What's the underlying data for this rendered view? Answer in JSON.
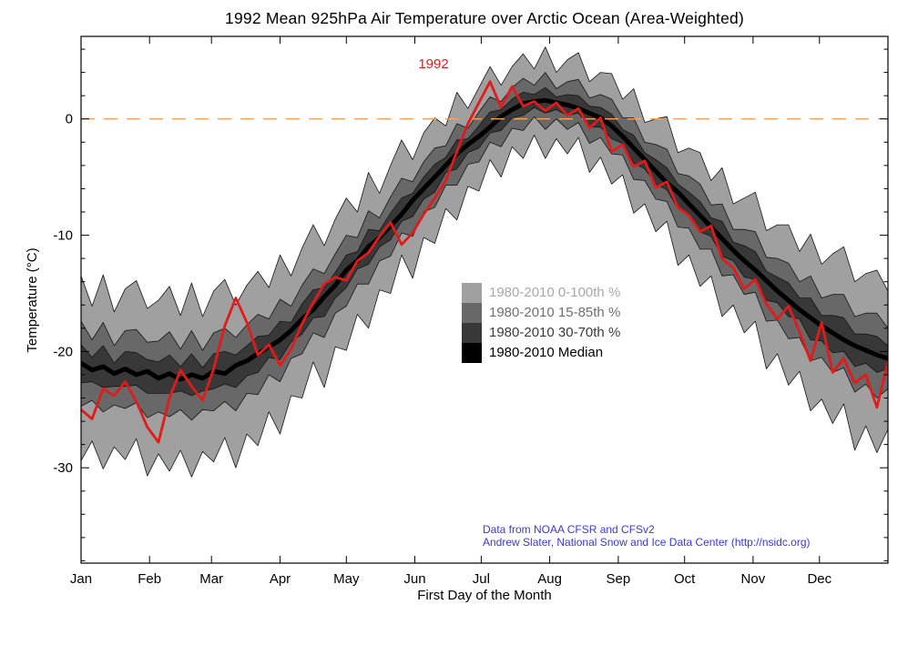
{
  "title": "1992 Mean 925hPa Air Temperature over Arctic Ocean (Area-Weighted)",
  "annotation_1992": "1992",
  "xlabel": "First Day of the Month",
  "ylabel": "Temperature (°C)",
  "credits": [
    "Data from NOAA CFSR and CFSv2",
    "Andrew Slater, National Snow and Ice Data Center (http://nsidc.org)"
  ],
  "colors": {
    "red_1992": "#e31a1a",
    "zero_line": "#f2a45c",
    "credits_blue": "#3a3ace",
    "band_outline": "#141414",
    "axis": "#000000"
  },
  "legend": {
    "items": [
      {
        "label": "1980-2010 0-100th %",
        "swatch": "#a0a0a0",
        "text_color": "#a8a8a8"
      },
      {
        "label": "1980-2010 15-85th %",
        "swatch": "#686868",
        "text_color": "#6f6f6f"
      },
      {
        "label": "1980-2010 30-70th %",
        "swatch": "#383838",
        "text_color": "#3a3a3a"
      },
      {
        "label": "1980-2010 Median",
        "swatch": "#000000",
        "text_color": "#000000"
      }
    ]
  },
  "chart_data": {
    "type": "line",
    "title": "1992 Mean 925hPa Air Temperature over Arctic Ocean (Area-Weighted)",
    "xlabel": "First Day of the Month",
    "ylabel": "Temperature (°C)",
    "x_unit": "day_of_year",
    "day_step": 5,
    "xlim_days": [
      0,
      365
    ],
    "ylim": [
      -38.2,
      7.1
    ],
    "yticks_labeled": [
      0,
      -10,
      -20,
      -30
    ],
    "ytick_minor_step": 2,
    "x_tick_months": [
      "Jan",
      "Feb",
      "Mar",
      "Apr",
      "May",
      "Jun",
      "Jul",
      "Aug",
      "Sep",
      "Oct",
      "Nov",
      "Dec"
    ],
    "month_start_days": [
      0,
      31,
      59,
      90,
      120,
      151,
      181,
      212,
      243,
      273,
      304,
      334
    ],
    "zero_reference_line": {
      "value": 0,
      "color": "#f2a45c",
      "style": "dashed"
    },
    "bands": [
      {
        "name": "1980-2010 0-100th %",
        "color": "#a0a0a0",
        "upper": "p100",
        "lower": "p0"
      },
      {
        "name": "1980-2010 15-85th %",
        "color": "#686868",
        "upper": "p85",
        "lower": "p15"
      },
      {
        "name": "1980-2010 30-70th %",
        "color": "#383838",
        "upper": "p70",
        "lower": "p30"
      }
    ],
    "line_styles": {
      "median": {
        "color": "#000000",
        "width": 5,
        "label": "1980-2010 Median"
      },
      "t1992": {
        "color": "#e31a1a",
        "width": 2.8,
        "label": "1992"
      }
    },
    "series": {
      "p100": [
        -13.5,
        -16.1,
        -13.4,
        -16.6,
        -14.6,
        -13.9,
        -16.3,
        -15.6,
        -14.4,
        -16.9,
        -14.1,
        -17.0,
        -14.8,
        -13.8,
        -16.0,
        -14.3,
        -13.1,
        -14.5,
        -11.7,
        -13.5,
        -11.1,
        -9.1,
        -10.9,
        -8.6,
        -6.8,
        -8.0,
        -4.6,
        -6.4,
        -4.0,
        -1.8,
        -3.5,
        -1.2,
        0.1,
        -0.6,
        2.3,
        0.9,
        2.7,
        4.5,
        2.9,
        4.5,
        5.6,
        4.3,
        6.2,
        4.0,
        5.1,
        5.7,
        3.2,
        4.0,
        3.9,
        1.7,
        2.6,
        -0.3,
        0.0,
        0.2,
        -2.9,
        -2.5,
        -2.9,
        -5.3,
        -4.2,
        -7.3,
        -6.8,
        -6.3,
        -9.6,
        -9.1,
        -9.1,
        -11.4,
        -9.9,
        -12.5,
        -11.6,
        -11.0,
        -14.0,
        -13.3,
        -13.0,
        -14.8
      ],
      "p85": [
        -17.4,
        -19.0,
        -17.5,
        -19.5,
        -18.2,
        -18.1,
        -19.2,
        -19.1,
        -18.3,
        -19.8,
        -18.2,
        -19.9,
        -18.4,
        -18.0,
        -18.8,
        -17.7,
        -16.8,
        -17.2,
        -15.5,
        -16.1,
        -14.3,
        -12.9,
        -13.3,
        -11.6,
        -10.0,
        -10.2,
        -7.9,
        -8.5,
        -6.7,
        -5.1,
        -5.4,
        -3.7,
        -2.5,
        -2.3,
        -0.4,
        -0.8,
        0.6,
        1.9,
        1.5,
        2.7,
        3.5,
        2.9,
        4.0,
        2.6,
        3.2,
        3.4,
        1.8,
        2.1,
        1.7,
        0.1,
        0.1,
        -2.0,
        -2.2,
        -2.6,
        -4.7,
        -4.9,
        -5.6,
        -7.4,
        -7.3,
        -9.5,
        -9.5,
        -9.7,
        -11.9,
        -12.0,
        -12.4,
        -14.0,
        -13.5,
        -15.4,
        -15.1,
        -15.1,
        -17.0,
        -16.7,
        -16.7,
        -18.0
      ],
      "p70": [
        -19.4,
        -20.5,
        -19.5,
        -21.0,
        -20.0,
        -20.1,
        -20.7,
        -20.9,
        -20.3,
        -21.3,
        -20.2,
        -21.4,
        -20.2,
        -20.0,
        -20.3,
        -19.5,
        -18.7,
        -18.6,
        -17.4,
        -17.5,
        -15.9,
        -14.7,
        -14.5,
        -13.2,
        -11.7,
        -11.4,
        -9.5,
        -9.6,
        -8.1,
        -6.8,
        -6.4,
        -5.0,
        -3.9,
        -3.3,
        -1.8,
        -1.7,
        -0.6,
        0.6,
        0.8,
        1.7,
        2.3,
        2.1,
        2.7,
        1.9,
        2.1,
        2.0,
        1.1,
        1.0,
        0.4,
        -0.9,
        -1.4,
        -2.9,
        -3.5,
        -4.2,
        -5.6,
        -6.3,
        -7.1,
        -8.5,
        -8.8,
        -10.6,
        -10.9,
        -11.4,
        -13.1,
        -13.6,
        -14.1,
        -15.4,
        -15.4,
        -16.9,
        -16.9,
        -17.1,
        -18.5,
        -18.5,
        -18.7,
        -19.5
      ],
      "median": [
        -21.0,
        -21.6,
        -21.3,
        -21.9,
        -21.5,
        -22.0,
        -21.7,
        -22.3,
        -21.9,
        -22.4,
        -22.0,
        -22.3,
        -21.7,
        -21.9,
        -21.2,
        -20.8,
        -20.2,
        -19.6,
        -19.0,
        -18.2,
        -17.2,
        -16.4,
        -15.3,
        -14.3,
        -13.0,
        -12.2,
        -11.0,
        -10.2,
        -9.2,
        -8.2,
        -7.0,
        -6.0,
        -5.0,
        -4.0,
        -3.0,
        -2.2,
        -1.5,
        -0.7,
        0.2,
        0.8,
        1.3,
        1.5,
        1.6,
        1.4,
        1.2,
        0.9,
        0.5,
        0.1,
        -0.6,
        -1.5,
        -2.5,
        -3.5,
        -4.5,
        -5.5,
        -6.3,
        -7.3,
        -8.3,
        -9.3,
        -10.3,
        -11.3,
        -12.2,
        -13.0,
        -13.9,
        -14.8,
        -15.6,
        -16.4,
        -17.1,
        -17.8,
        -18.4,
        -19.0,
        -19.5,
        -19.9,
        -20.3,
        -20.6
      ],
      "p30": [
        -22.7,
        -22.6,
        -23.1,
        -23.0,
        -23.0,
        -22.9,
        -23.6,
        -23.6,
        -23.6,
        -23.4,
        -23.8,
        -23.4,
        -23.2,
        -22.8,
        -23.1,
        -22.1,
        -21.8,
        -20.5,
        -20.7,
        -19.2,
        -18.5,
        -17.1,
        -17.0,
        -15.4,
        -14.5,
        -12.9,
        -12.5,
        -11.0,
        -10.4,
        -8.8,
        -8.4,
        -6.9,
        -6.3,
        -4.6,
        -4.3,
        -2.9,
        -2.5,
        -1.2,
        -1.0,
        0.1,
        0.3,
        1.0,
        0.5,
        0.8,
        0.3,
        0.5,
        -0.7,
        -0.7,
        -1.7,
        -2.1,
        -3.8,
        -4.3,
        -5.6,
        -6.1,
        -7.7,
        -8.3,
        -9.7,
        -10.1,
        -11.8,
        -12.2,
        -13.6,
        -13.8,
        -15.6,
        -15.8,
        -17.0,
        -17.2,
        -19.0,
        -19.1,
        -20.1,
        -20.0,
        -21.3,
        -21.0,
        -21.8,
        -21.5
      ],
      "p15": [
        -24.7,
        -24.2,
        -25.2,
        -24.6,
        -24.9,
        -24.4,
        -25.7,
        -25.2,
        -25.6,
        -25.0,
        -25.9,
        -25.0,
        -25.1,
        -24.3,
        -25.1,
        -23.6,
        -23.7,
        -22.0,
        -22.6,
        -20.6,
        -20.2,
        -18.4,
        -18.8,
        -16.7,
        -16.1,
        -14.2,
        -14.2,
        -12.2,
        -11.8,
        -9.8,
        -10.1,
        -8.0,
        -7.6,
        -5.7,
        -5.7,
        -3.9,
        -3.7,
        -2.0,
        -2.4,
        -0.8,
        -1.0,
        0.2,
        -0.9,
        0.0,
        -0.9,
        -0.3,
        -2.1,
        -1.6,
        -3.0,
        -3.1,
        -5.2,
        -5.3,
        -6.9,
        -7.1,
        -9.3,
        -9.4,
        -11.2,
        -11.2,
        -13.5,
        -13.4,
        -15.1,
        -14.9,
        -17.4,
        -17.3,
        -18.9,
        -18.8,
        -20.8,
        -20.5,
        -21.8,
        -21.4,
        -23.5,
        -22.8,
        -24.0,
        -23.2
      ],
      "p0": [
        -29.4,
        -27.7,
        -30.1,
        -28.2,
        -29.3,
        -27.5,
        -30.7,
        -28.8,
        -30.3,
        -28.5,
        -30.8,
        -28.6,
        -29.5,
        -27.4,
        -30.0,
        -27.1,
        -28.1,
        -25.2,
        -27.1,
        -23.8,
        -24.0,
        -20.9,
        -23.1,
        -19.6,
        -19.9,
        -16.8,
        -18.0,
        -14.7,
        -15.0,
        -11.7,
        -13.7,
        -10.2,
        -10.7,
        -7.7,
        -8.7,
        -5.8,
        -6.2,
        -3.5,
        -5.0,
        -2.4,
        -3.4,
        -1.4,
        -3.4,
        -1.7,
        -3.0,
        -1.6,
        -4.6,
        -3.3,
        -5.6,
        -4.8,
        -8.1,
        -7.3,
        -9.7,
        -8.8,
        -12.6,
        -11.7,
        -14.4,
        -13.5,
        -17.0,
        -16.0,
        -18.4,
        -17.4,
        -21.5,
        -20.2,
        -22.9,
        -21.7,
        -25.1,
        -24.1,
        -26.2,
        -24.5,
        -28.5,
        -26.4,
        -28.7,
        -26.7
      ],
      "t1992": [
        -25.0,
        -25.8,
        -23.2,
        -23.8,
        -22.6,
        -24.3,
        -26.5,
        -27.8,
        -24.0,
        -21.6,
        -23.0,
        -24.2,
        -21.5,
        -17.8,
        -15.4,
        -17.5,
        -20.3,
        -19.4,
        -21.2,
        -19.8,
        -17.6,
        -15.8,
        -14.2,
        -13.6,
        -13.9,
        -12.2,
        -11.5,
        -10.1,
        -8.9,
        -10.8,
        -9.8,
        -8.2,
        -6.8,
        -5.3,
        -2.8,
        -0.4,
        1.4,
        3.2,
        1.0,
        2.8,
        1.1,
        1.5,
        0.7,
        1.4,
        0.3,
        0.9,
        -0.8,
        0.1,
        -2.8,
        -2.2,
        -4.1,
        -3.6,
        -5.9,
        -5.4,
        -7.6,
        -8.3,
        -9.7,
        -9.2,
        -12.0,
        -12.8,
        -14.6,
        -13.8,
        -15.9,
        -17.2,
        -16.1,
        -18.3,
        -20.8,
        -17.5,
        -21.8,
        -20.6,
        -22.7,
        -22.0,
        -24.8,
        -20.9
      ]
    }
  }
}
